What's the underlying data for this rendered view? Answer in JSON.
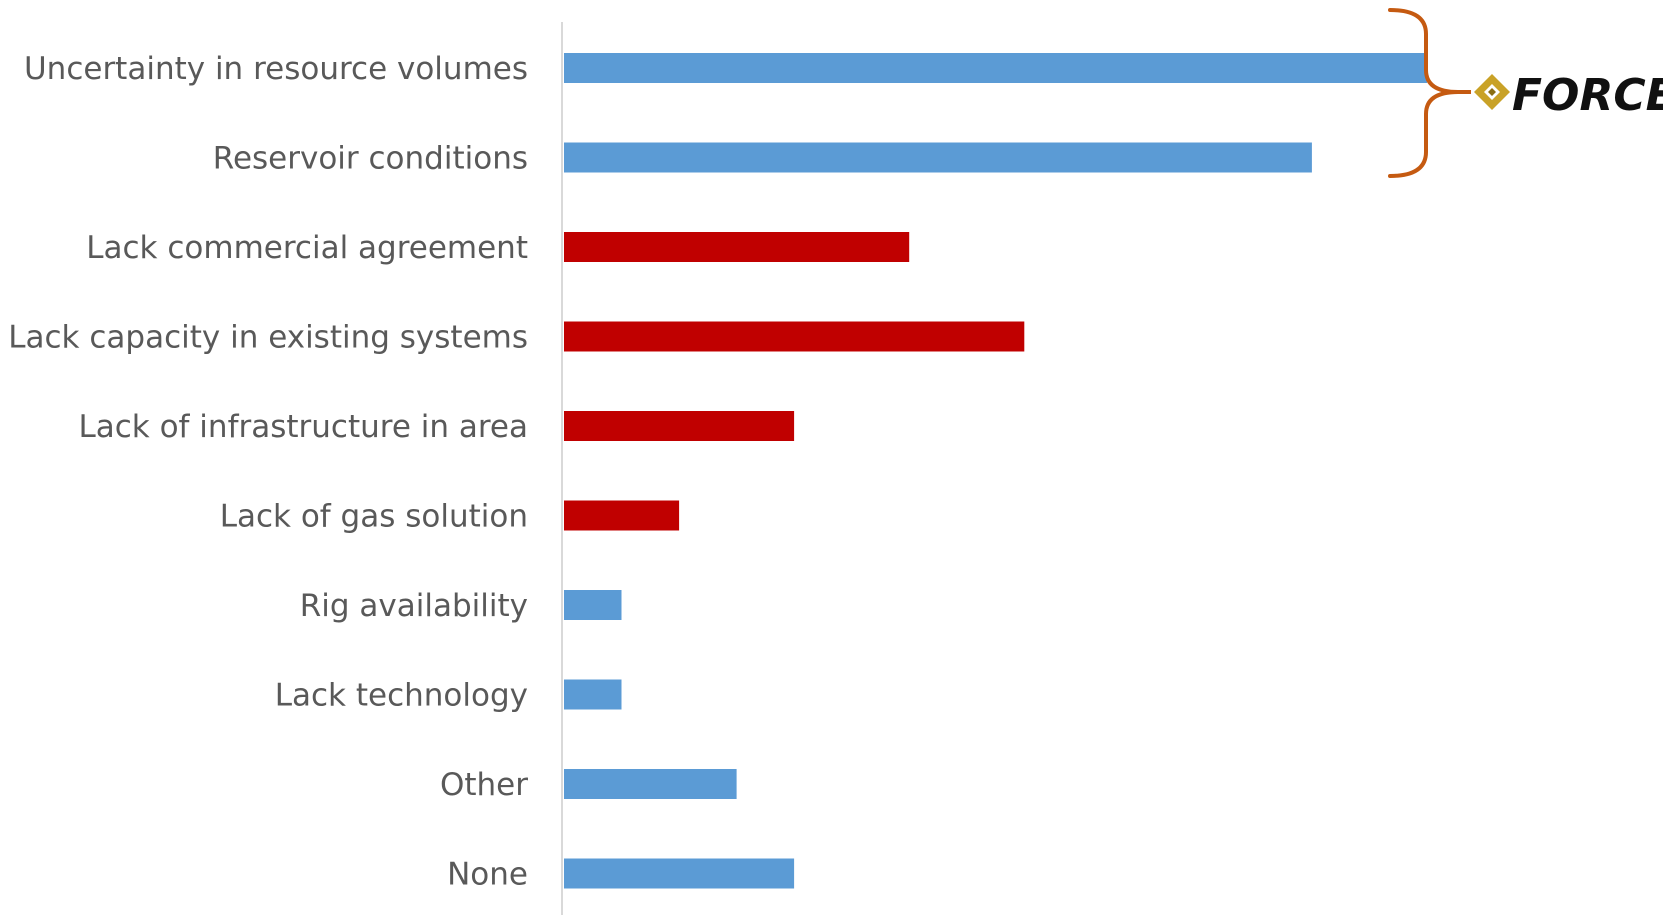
{
  "chart_data": {
    "type": "bar",
    "orientation": "horizontal",
    "title": "",
    "xlabel": "",
    "ylabel": "",
    "xlim": [
      0,
      15
    ],
    "grid": false,
    "categories": [
      "Uncertainty in resource volumes",
      "Reservoir conditions",
      "Lack commercial agreement",
      "Lack capacity in existing systems",
      "Lack of infrastructure in area",
      "Lack of gas solution",
      "Rig availability",
      "Lack technology",
      "Other",
      "None"
    ],
    "values": [
      15,
      13,
      6,
      8,
      4,
      2,
      1,
      1,
      3,
      4
    ],
    "colors": [
      "#5B9BD5",
      "#5B9BD5",
      "#C00000",
      "#C00000",
      "#C00000",
      "#C00000",
      "#5B9BD5",
      "#5B9BD5",
      "#5B9BD5",
      "#5B9BD5"
    ],
    "annotation": {
      "type": "bracket",
      "spans_categories": [
        "Uncertainty in resource volumes",
        "Reservoir conditions"
      ],
      "color": "#C55A11",
      "logo_text": "FORCE",
      "logo_colors": [
        "#C9A227",
        "#8A6D12"
      ]
    }
  }
}
